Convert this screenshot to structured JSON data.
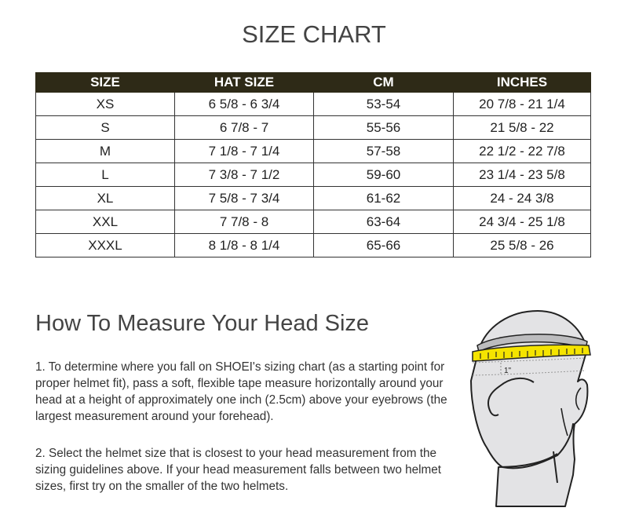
{
  "title": "SIZE CHART",
  "table": {
    "headers": [
      "SIZE",
      "HAT SIZE",
      "CM",
      "INCHES"
    ],
    "rows": [
      [
        "XS",
        "6 5/8 - 6 3/4",
        "53-54",
        "20 7/8 - 21 1/4"
      ],
      [
        "S",
        "6 7/8 - 7",
        "55-56",
        "21 5/8 - 22"
      ],
      [
        "M",
        "7 1/8 - 7 1/4",
        "57-58",
        "22 1/2 - 22 7/8"
      ],
      [
        "L",
        "7 3/8 - 7 1/2",
        "59-60",
        "23 1/4 - 23 5/8"
      ],
      [
        "XL",
        "7 5/8 - 7 3/4",
        "61-62",
        "24 - 24 3/8"
      ],
      [
        "XXL",
        "7 7/8 - 8",
        "63-64",
        "24 3/4 - 25 1/8"
      ],
      [
        "XXXL",
        "8 1/8 - 8 1/4",
        "65-66",
        "25 5/8 - 26"
      ]
    ]
  },
  "measure": {
    "heading": "How To Measure Your Head Size",
    "step1": "1. To determine where you fall on SHOEI's sizing chart (as a starting point for proper helmet fit), pass a soft, flexible tape measure horizontally around your head at a height of approximately one inch (2.5cm) above your eyebrows (the largest measurement around your forehead).",
    "step2": "2. Select the helmet size that is closest to your head measurement from the sizing guidelines above. If your head measurement falls between two helmet sizes, first try on the smaller of the two helmets.",
    "illustration_label": "1\""
  },
  "colors": {
    "header_bg": "#2e2a17",
    "tape": "#f5e400"
  }
}
